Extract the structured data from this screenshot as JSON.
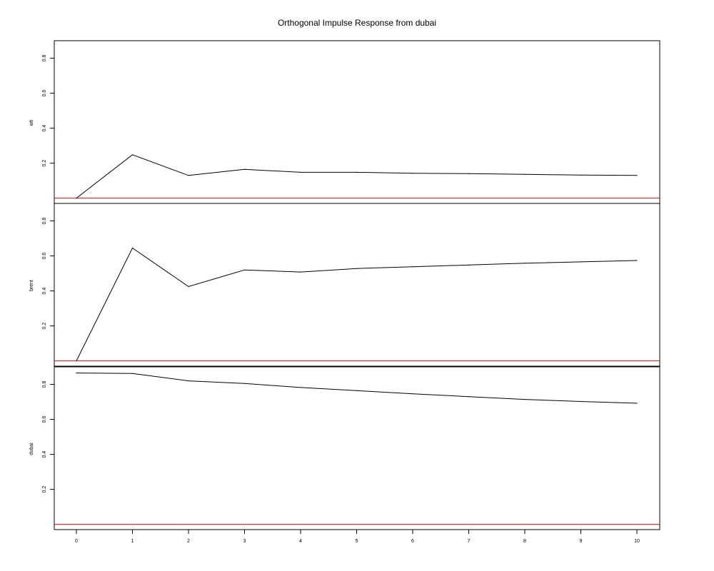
{
  "chart_data": {
    "type": "line",
    "title": "Orthogonal Impulse Response from dubai",
    "x": [
      0,
      1,
      2,
      3,
      4,
      5,
      6,
      7,
      8,
      9,
      10
    ],
    "x_ticks": [
      "0",
      "1",
      "2",
      "3",
      "4",
      "5",
      "6",
      "7",
      "8",
      "9",
      "10"
    ],
    "y_ticks": [
      "0.2",
      "0.4",
      "0.6",
      "0.8"
    ],
    "ylim": [
      -0.03,
      0.9
    ],
    "zero_line_color": "#ff0000",
    "line_color": "#000000",
    "panels": [
      {
        "name": "wti",
        "ylabel": "wti",
        "values": [
          0.0,
          0.248,
          0.13,
          0.165,
          0.148,
          0.148,
          0.142,
          0.14,
          0.136,
          0.132,
          0.13
        ]
      },
      {
        "name": "brent",
        "ylabel": "brent",
        "values": [
          0.0,
          0.645,
          0.425,
          0.52,
          0.508,
          0.528,
          0.538,
          0.548,
          0.558,
          0.566,
          0.574
        ]
      },
      {
        "name": "dubai",
        "ylabel": "dubai",
        "values": [
          0.865,
          0.862,
          0.82,
          0.805,
          0.782,
          0.764,
          0.746,
          0.73,
          0.714,
          0.702,
          0.692
        ]
      }
    ]
  }
}
